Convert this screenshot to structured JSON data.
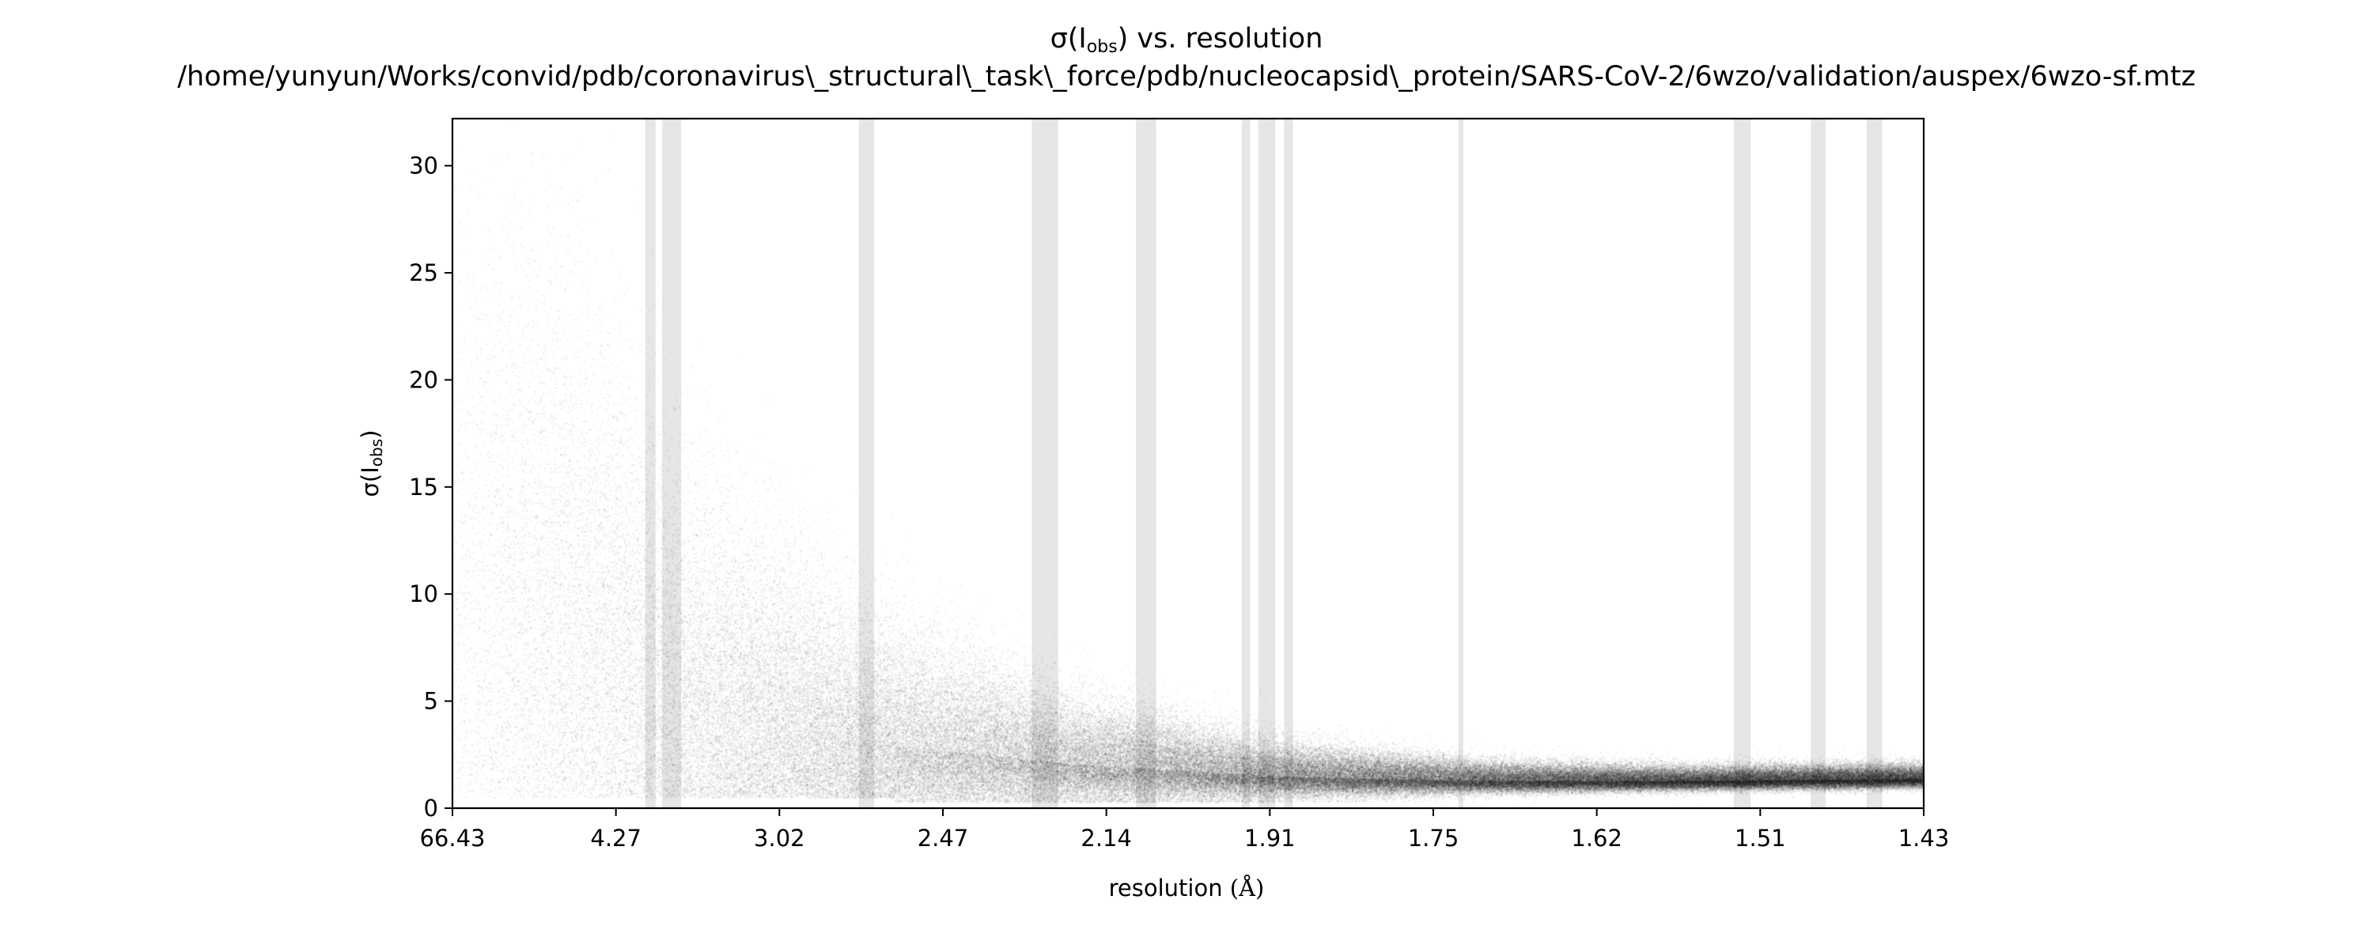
{
  "chart_data": {
    "type": "scatter",
    "title": "σ(I_obs) vs. resolution",
    "title_line1_prefix": "σ(I",
    "title_line1_sub": "obs",
    "title_line1_suffix": ") vs. resolution",
    "subtitle": "/home/yunyun/Works/convid/pdb/coronavirus\\_structural\\_task\\_force/pdb/nucleocapsid\\_protein/SARS-CoV-2/6wzo/validation/auspex/6wzo-sf.mtz",
    "xlabel_prefix": "resolution ",
    "xlabel_unit": "(Å)",
    "ylabel_prefix": "σ(I",
    "ylabel_sub": "obs",
    "ylabel_suffix": ")",
    "x_scale": "resolution (1/d²)",
    "xlim": [
      66.43,
      1.425
    ],
    "ylim": [
      0,
      32.2
    ],
    "x_ticks": [
      "66.43",
      "4.27",
      "3.02",
      "2.47",
      "2.14",
      "1.91",
      "1.75",
      "1.62",
      "1.51",
      "1.43"
    ],
    "y_ticks": [
      "0",
      "5",
      "10",
      "15",
      "20",
      "25",
      "30"
    ],
    "y_tick_values": [
      0,
      5,
      10,
      15,
      20,
      25,
      30
    ],
    "grid": false,
    "legend": "none",
    "ice_ring_bands_angstrom": [
      [
        3.93,
        3.83
      ],
      [
        3.77,
        3.68
      ],
      [
        3.69,
        3.61
      ],
      [
        2.71,
        2.66
      ],
      [
        2.27,
        2.22
      ],
      [
        2.09,
        2.06
      ],
      [
        1.945,
        1.935
      ],
      [
        1.925,
        1.905
      ],
      [
        1.895,
        1.885
      ],
      [
        1.723,
        1.719
      ],
      [
        1.527,
        1.517
      ],
      [
        1.483,
        1.475
      ],
      [
        1.4535,
        1.4455
      ]
    ],
    "density_profile": [
      {
        "resolution": 6.0,
        "median_sigma": 8.0,
        "spread": 9.0
      },
      {
        "resolution": 3.5,
        "median_sigma": 4.5,
        "spread": 5.0
      },
      {
        "resolution": 2.7,
        "median_sigma": 2.8,
        "spread": 3.0
      },
      {
        "resolution": 2.2,
        "median_sigma": 1.8,
        "spread": 1.6
      },
      {
        "resolution": 1.9,
        "median_sigma": 1.2,
        "spread": 0.8
      },
      {
        "resolution": 1.7,
        "median_sigma": 1.0,
        "spread": 0.45
      },
      {
        "resolution": 1.55,
        "median_sigma": 1.0,
        "spread": 0.35
      },
      {
        "resolution": 1.43,
        "median_sigma": 1.1,
        "spread": 0.35
      }
    ],
    "colors": {
      "points": "#000000",
      "bands": "#e6e6e6",
      "axes": "#000000"
    }
  }
}
